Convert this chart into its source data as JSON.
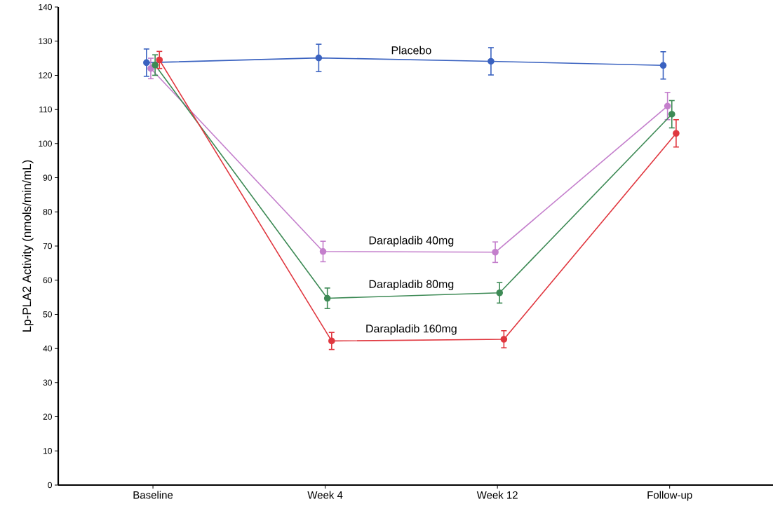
{
  "chart_data": {
    "type": "line",
    "ylabel": "Lp-PLA2 Activity (nmols/min/mL)",
    "categories": [
      "Baseline",
      "Week 4",
      "Week 12",
      "Follow-up"
    ],
    "ylim": [
      0,
      140
    ],
    "yticks": [
      0,
      10,
      20,
      30,
      40,
      50,
      60,
      70,
      80,
      90,
      100,
      110,
      120,
      130,
      140
    ],
    "grid": false,
    "legend": false,
    "marker": "circle",
    "line_style": "solid",
    "series": [
      {
        "name": "Placebo",
        "color": "#3a62c0",
        "values": [
          123.7,
          125.1,
          124.1,
          122.9
        ],
        "errors": [
          4,
          4,
          4,
          4
        ]
      },
      {
        "name": "Darapladib 40mg",
        "color": "#c47fcc",
        "values": [
          122,
          68.4,
          68.2,
          111
        ],
        "errors": [
          3,
          3,
          3,
          4
        ]
      },
      {
        "name": "Darapladib 80mg",
        "color": "#3d8a55",
        "values": [
          123,
          54.7,
          56.3,
          108.6
        ],
        "errors": [
          3,
          3,
          3,
          4
        ]
      },
      {
        "name": "Darapladib 160mg",
        "color": "#e0373f",
        "values": [
          124.5,
          42.2,
          42.7,
          103
        ],
        "errors": [
          2.5,
          2.5,
          2.5,
          4
        ]
      }
    ]
  }
}
